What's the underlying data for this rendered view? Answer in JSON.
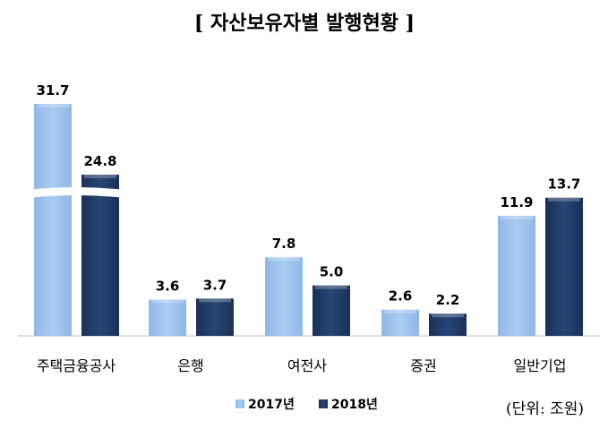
{
  "chart_data": {
    "type": "bar",
    "title": "[ 자산보유자별  발행현황 ]",
    "unit_note": "(단위:  조원)",
    "categories": [
      "주택금융공사",
      "은행",
      "여전사",
      "증권",
      "일반기업"
    ],
    "series": [
      {
        "name": "2017년",
        "color": "#9dc3ee",
        "values": [
          31.7,
          3.6,
          7.8,
          2.6,
          11.9
        ]
      },
      {
        "name": "2018년",
        "color": "#1f3864",
        "values": [
          24.8,
          3.7,
          5.0,
          2.2,
          13.7
        ]
      }
    ],
    "value_labels": [
      [
        "31.7",
        "3.6",
        "7.8",
        "2.6",
        "11.9"
      ],
      [
        "24.8",
        "3.7",
        "5.0",
        "2.2",
        "13.7"
      ]
    ],
    "axis_break_category": 0,
    "legend_position": "bottom-center",
    "grid": false
  }
}
